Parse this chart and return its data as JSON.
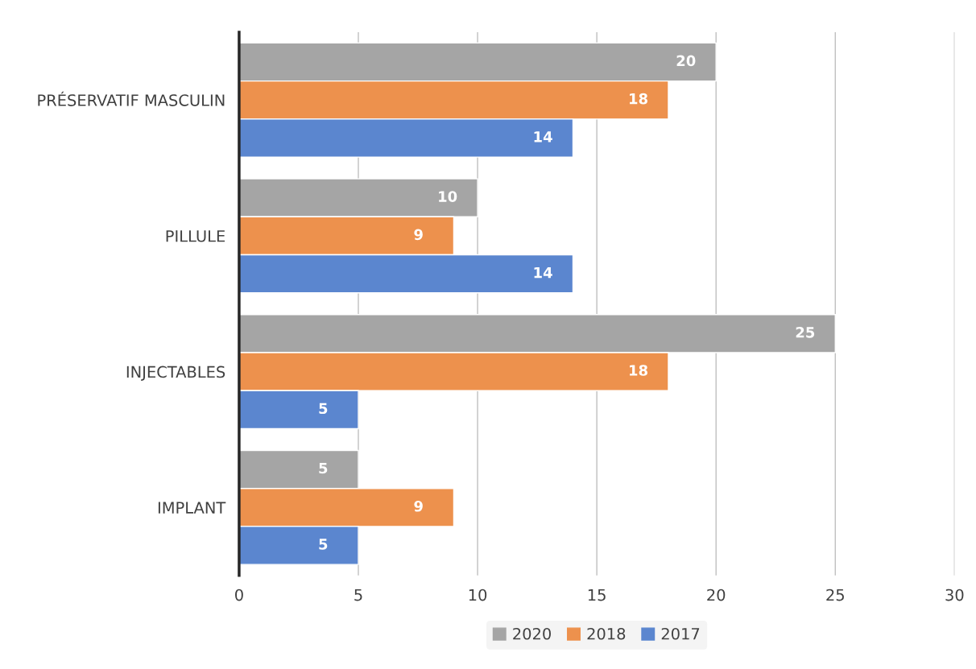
{
  "chart_data": {
    "type": "bar",
    "orientation": "horizontal",
    "categories": [
      "PRÉSERVATIF MASCULIN",
      "PILLULE",
      "INJECTABLES",
      "IMPLANT"
    ],
    "series": [
      {
        "name": "2020",
        "color": "#a5a5a5",
        "values": [
          20,
          10,
          25,
          5
        ]
      },
      {
        "name": "2018",
        "color": "#ed914d",
        "values": [
          18,
          9,
          18,
          9
        ]
      },
      {
        "name": "2017",
        "color": "#5b86cf",
        "values": [
          14,
          14,
          5,
          5
        ]
      }
    ],
    "xlim": [
      0,
      30
    ],
    "xticks": [
      0,
      5,
      10,
      15,
      20,
      25,
      30
    ],
    "grid": "x",
    "legend": "bottom",
    "data_labels": true
  }
}
